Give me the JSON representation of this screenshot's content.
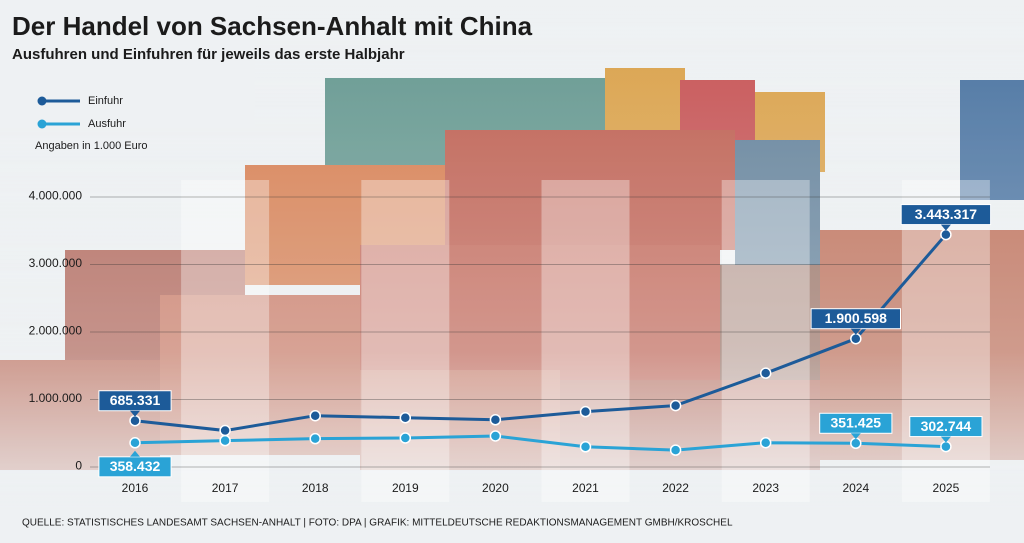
{
  "chart_data": {
    "type": "line",
    "title": "Der Handel von Sachsen-Anhalt mit China",
    "subtitle": "Ausfuhren und Einfuhren für jeweils das erste Halbjahr",
    "note": "Angaben in 1.000 Euro",
    "source": "QUELLE: STATISTISCHES LANDESAMT SACHSEN-ANHALT | FOTO: DPA | GRAFIK: MITTELDEUTSCHE REDAKTIONSMANAGEMENT GMBH/KROSCHEL",
    "categories": [
      "2016",
      "2017",
      "2018",
      "2019",
      "2020",
      "2021",
      "2022",
      "2023",
      "2024",
      "2025"
    ],
    "series": [
      {
        "name": "Einfuhr",
        "color": "#1d5b99",
        "values": [
          685331,
          540000,
          760000,
          730000,
          700000,
          820000,
          910000,
          1390000,
          1900598,
          3443317
        ],
        "value_labels": [
          "685.331",
          null,
          null,
          null,
          null,
          null,
          null,
          null,
          "1.900.598",
          "3.443.317"
        ]
      },
      {
        "name": "Ausfuhr",
        "color": "#2aa3d6",
        "values": [
          358432,
          390000,
          420000,
          430000,
          460000,
          300000,
          250000,
          360000,
          351425,
          302744
        ],
        "value_labels": [
          "358.432",
          null,
          null,
          null,
          null,
          null,
          null,
          null,
          "351.425",
          "302.744"
        ]
      }
    ],
    "ylim": [
      0,
      4400000
    ],
    "yticks": [
      0,
      {
        "value": 1000000,
        "label": "1.000.000"
      },
      {
        "value": 2000000,
        "label": "2.000.000"
      },
      {
        "value": 3000000,
        "label": "3.000.000"
      },
      {
        "value": 4000000,
        "label": "4.000.000"
      }
    ],
    "grid": true
  }
}
